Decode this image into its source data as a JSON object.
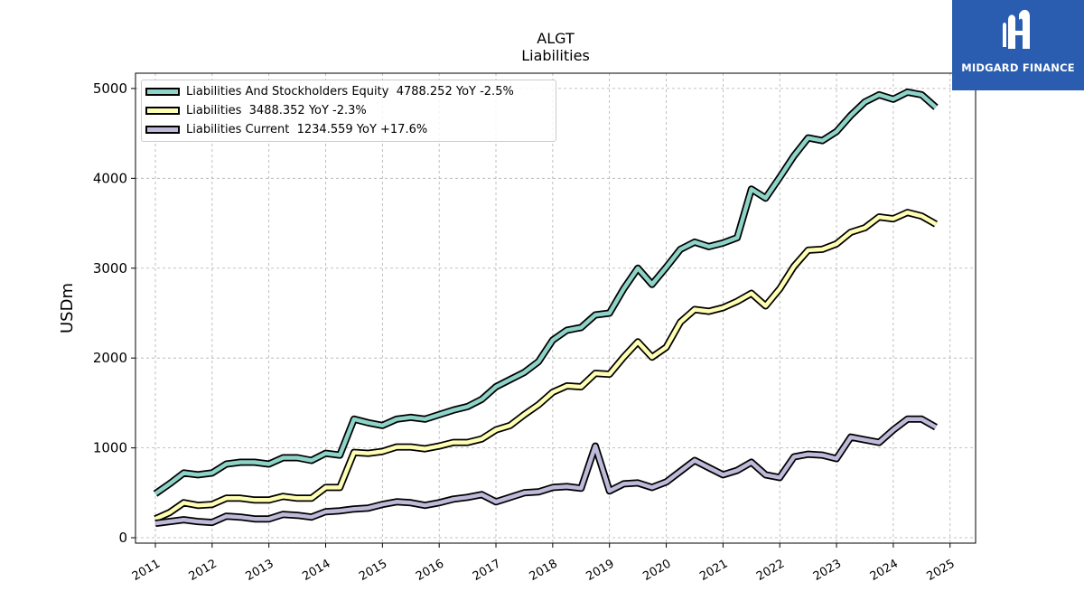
{
  "chart_data": {
    "type": "line",
    "title": "ALGT",
    "subtitle": "Liabilities",
    "ylabel": "USDm",
    "xlabel": "",
    "ylim": [
      -60,
      5170
    ],
    "xlim": [
      2010.65,
      2025.45
    ],
    "yticks": [
      0,
      1000,
      2000,
      3000,
      4000,
      5000
    ],
    "xticks": [
      "2011",
      "2012",
      "2013",
      "2014",
      "2015",
      "2016",
      "2017",
      "2018",
      "2019",
      "2020",
      "2021",
      "2022",
      "2023",
      "2024",
      "2025"
    ],
    "grid": true,
    "legend_position": "top-left",
    "x": [
      2011.0,
      2011.25,
      2011.5,
      2011.75,
      2012.0,
      2012.25,
      2012.5,
      2012.75,
      2013.0,
      2013.25,
      2013.5,
      2013.75,
      2014.0,
      2014.25,
      2014.5,
      2014.75,
      2015.0,
      2015.25,
      2015.5,
      2015.75,
      2016.0,
      2016.25,
      2016.5,
      2016.75,
      2017.0,
      2017.25,
      2017.5,
      2017.75,
      2018.0,
      2018.25,
      2018.5,
      2018.75,
      2019.0,
      2019.25,
      2019.5,
      2019.75,
      2020.0,
      2020.25,
      2020.5,
      2020.75,
      2021.0,
      2021.25,
      2021.5,
      2021.75,
      2022.0,
      2022.25,
      2022.5,
      2022.75,
      2023.0,
      2023.25,
      2023.5,
      2023.75,
      2024.0,
      2024.25,
      2024.5,
      2024.75
    ],
    "series": [
      {
        "name": "Liabilities And Stockholders Equity",
        "legend": "Liabilities And Stockholders Equity  4788.252 YoY -2.5%",
        "color": "#8dd3c7",
        "values": [
          490,
          600,
          720,
          700,
          720,
          820,
          840,
          840,
          820,
          890,
          890,
          860,
          940,
          920,
          1320,
          1280,
          1250,
          1320,
          1340,
          1320,
          1370,
          1420,
          1460,
          1540,
          1680,
          1760,
          1840,
          1960,
          2200,
          2310,
          2340,
          2480,
          2500,
          2770,
          3000,
          2820,
          3010,
          3210,
          3290,
          3240,
          3280,
          3340,
          3880,
          3780,
          4010,
          4250,
          4450,
          4420,
          4520,
          4700,
          4850,
          4930,
          4880,
          4960,
          4930,
          4790
        ]
      },
      {
        "name": "Liabilities",
        "legend": "Liabilities  3488.352 YoY -2.3%",
        "color": "#ffffb3",
        "values": [
          210,
          280,
          390,
          360,
          370,
          440,
          440,
          420,
          420,
          460,
          440,
          440,
          560,
          560,
          950,
          940,
          960,
          1010,
          1010,
          990,
          1020,
          1060,
          1060,
          1100,
          1200,
          1250,
          1370,
          1480,
          1620,
          1690,
          1680,
          1830,
          1820,
          2010,
          2180,
          2010,
          2120,
          2400,
          2540,
          2520,
          2560,
          2630,
          2720,
          2580,
          2770,
          3020,
          3200,
          3210,
          3270,
          3400,
          3450,
          3570,
          3550,
          3620,
          3580,
          3490
        ]
      },
      {
        "name": "Liabilities Current",
        "legend": "Liabilities Current  1234.559 YoY +17.6%",
        "color": "#bebada",
        "values": [
          160,
          180,
          200,
          180,
          170,
          240,
          230,
          210,
          210,
          260,
          250,
          230,
          290,
          300,
          320,
          330,
          370,
          400,
          390,
          360,
          390,
          430,
          450,
          480,
          400,
          450,
          500,
          510,
          560,
          570,
          550,
          1020,
          520,
          600,
          610,
          560,
          620,
          740,
          860,
          780,
          700,
          750,
          840,
          700,
          670,
          900,
          930,
          920,
          880,
          1120,
          1090,
          1060,
          1200,
          1320,
          1320,
          1230
        ]
      }
    ]
  },
  "brand": {
    "name": "MIDGARD FINANCE",
    "background": "#2a5db0"
  }
}
